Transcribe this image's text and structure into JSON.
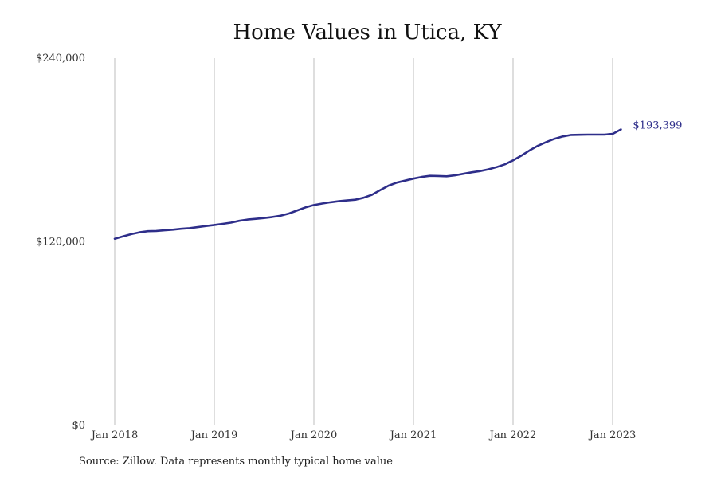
{
  "chart_data": {
    "type": "line",
    "title": "Home Values in Utica, KY",
    "xlabel": "",
    "ylabel": "",
    "ylim": [
      0,
      240000
    ],
    "y_ticks": [
      {
        "value": 0,
        "label": "$0"
      },
      {
        "value": 120000,
        "label": "$120,000"
      },
      {
        "value": 240000,
        "label": "$240,000"
      }
    ],
    "x_ticks": [
      {
        "value": "2018-01",
        "label": "Jan 2018"
      },
      {
        "value": "2019-01",
        "label": "Jan 2019"
      },
      {
        "value": "2020-01",
        "label": "Jan 2020"
      },
      {
        "value": "2021-01",
        "label": "Jan 2021"
      },
      {
        "value": "2022-01",
        "label": "Jan 2022"
      },
      {
        "value": "2023-01",
        "label": "Jan 2023"
      }
    ],
    "grid": "vertical lines at x ticks",
    "line_color": "#2e2e8a",
    "end_label": "$193,399",
    "series": [
      {
        "x": [
          "2018-01",
          "2018-02",
          "2018-03",
          "2018-04",
          "2018-05",
          "2018-06",
          "2018-07",
          "2018-08",
          "2018-09",
          "2018-10",
          "2018-11",
          "2018-12",
          "2019-01",
          "2019-02",
          "2019-03",
          "2019-04",
          "2019-05",
          "2019-06",
          "2019-07",
          "2019-08",
          "2019-09",
          "2019-10",
          "2019-11",
          "2019-12",
          "2020-01",
          "2020-02",
          "2020-03",
          "2020-04",
          "2020-05",
          "2020-06",
          "2020-07",
          "2020-08",
          "2020-09",
          "2020-10",
          "2020-11",
          "2020-12",
          "2021-01",
          "2021-02",
          "2021-03",
          "2021-04",
          "2021-05",
          "2021-06",
          "2021-07",
          "2021-08",
          "2021-09",
          "2021-10",
          "2021-11",
          "2021-12",
          "2022-01",
          "2022-02",
          "2022-03",
          "2022-04",
          "2022-05",
          "2022-06",
          "2022-07",
          "2022-08",
          "2022-09",
          "2022-10",
          "2022-11",
          "2022-12",
          "2023-01",
          "2023-02"
        ],
        "values": [
          122000,
          123500,
          125000,
          126200,
          126900,
          127100,
          127500,
          127900,
          128500,
          128900,
          129600,
          130300,
          131000,
          131700,
          132500,
          133700,
          134500,
          135000,
          135500,
          136200,
          137000,
          138500,
          140500,
          142500,
          144000,
          145000,
          145800,
          146500,
          147000,
          147500,
          148800,
          150700,
          153800,
          156700,
          158700,
          160000,
          161300,
          162400,
          163100,
          163000,
          162800,
          163400,
          164400,
          165400,
          166200,
          167300,
          168800,
          170600,
          173200,
          176300,
          179700,
          182800,
          185200,
          187300,
          188800,
          189800,
          189900,
          190000,
          190000,
          190000,
          190500,
          193399
        ]
      }
    ]
  },
  "source_note": "Source: Zillow. Data represents monthly typical home value"
}
